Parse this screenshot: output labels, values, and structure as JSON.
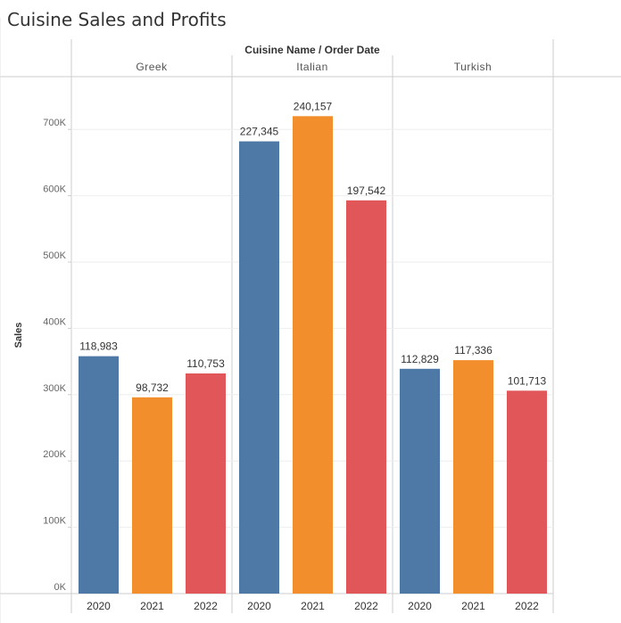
{
  "chart_data": {
    "type": "bar",
    "title": "Cuisine Sales and Profits",
    "header": "Cuisine Name / Order Date",
    "ylabel": "Sales",
    "ylim": [
      0,
      750000
    ],
    "yticks": [
      0,
      100000,
      200000,
      300000,
      400000,
      500000,
      600000,
      700000
    ],
    "ytick_labels": [
      "0K",
      "100K",
      "200K",
      "300K",
      "400K",
      "500K",
      "600K",
      "700K"
    ],
    "grid": true,
    "groups": [
      {
        "name": "Greek",
        "bars": [
          {
            "year": "2020",
            "sales": 358000,
            "label": "118,983"
          },
          {
            "year": "2021",
            "sales": 296000,
            "label": "98,732"
          },
          {
            "year": "2022",
            "sales": 332000,
            "label": "110,753"
          }
        ]
      },
      {
        "name": "Italian",
        "bars": [
          {
            "year": "2020",
            "sales": 682000,
            "label": "227,345"
          },
          {
            "year": "2021",
            "sales": 720000,
            "label": "240,157"
          },
          {
            "year": "2022",
            "sales": 593000,
            "label": "197,542"
          }
        ]
      },
      {
        "name": "Turkish",
        "bars": [
          {
            "year": "2020",
            "sales": 339000,
            "label": "112,829"
          },
          {
            "year": "2021",
            "sales": 352000,
            "label": "117,336"
          },
          {
            "year": "2022",
            "sales": 306000,
            "label": "101,713"
          }
        ]
      }
    ],
    "colors": {
      "2020": "#4e79a7",
      "2021": "#f28e2b",
      "2022": "#e15759"
    }
  }
}
